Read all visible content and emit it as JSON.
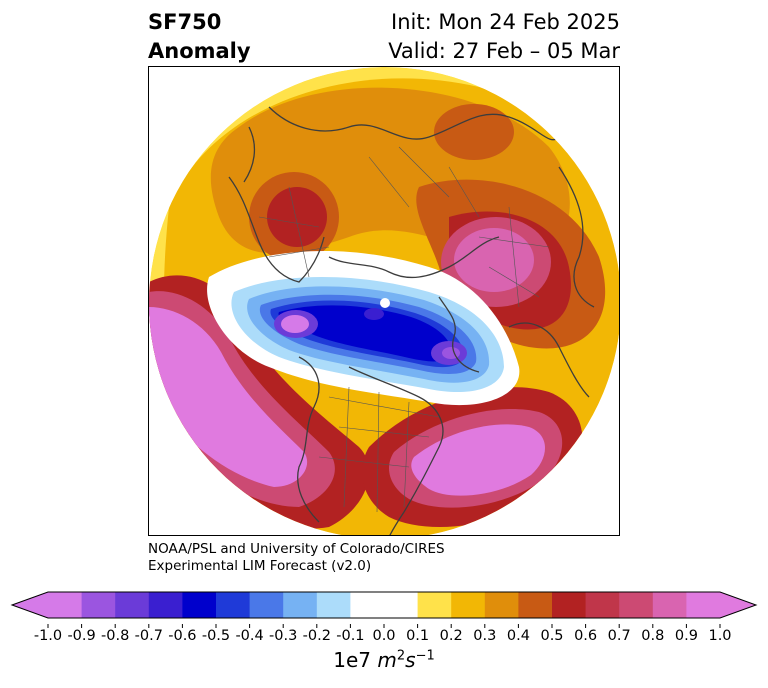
{
  "title": {
    "left_line1": "SF750",
    "left_line2": "Anomaly",
    "right_line1": "Init: Mon 24 Feb 2025",
    "right_line2": "Valid: 27 Feb – 05 Mar"
  },
  "credits": {
    "line1": "NOAA/PSL and University of Colorado/CIRES",
    "line2": "Experimental LIM Forecast (v2.0)"
  },
  "colorbar": {
    "unit_base": "1e7 ",
    "unit_m": "m",
    "unit_m_exp": "2",
    "unit_s": "s",
    "unit_s_exp": "−1",
    "ticks": [
      "-1.0",
      "-0.9",
      "-0.8",
      "-0.7",
      "-0.6",
      "-0.5",
      "-0.4",
      "-0.3",
      "-0.2",
      "-0.1",
      "0.0",
      "0.1",
      "0.2",
      "0.3",
      "0.4",
      "0.5",
      "0.6",
      "0.7",
      "0.8",
      "0.9",
      "1.0"
    ],
    "colors": [
      "#9b55e0",
      "#6b3bd8",
      "#3a1fd0",
      "#0000cc",
      "#1f3ad8",
      "#4a78e8",
      "#76b2f3",
      "#acdcfa",
      "#ffffff",
      "#ffffff",
      "#ffe24a",
      "#f2b705",
      "#e08e0b",
      "#c85a14",
      "#b22222",
      "#c0364a",
      "#cc4a73",
      "#d964b0"
    ],
    "under_color": "#d57ae8",
    "over_color": "#e07adf"
  }
}
